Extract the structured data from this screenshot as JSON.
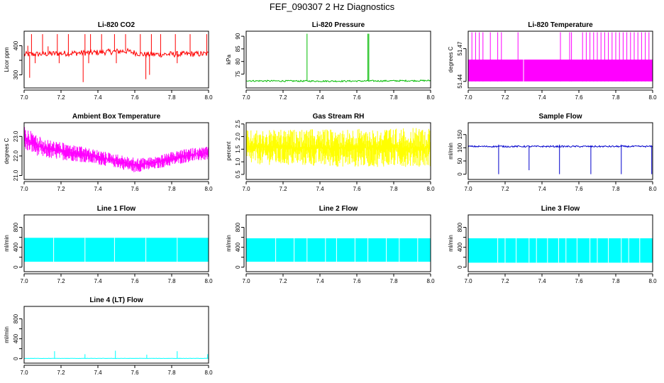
{
  "figure": {
    "title": "FEF_090307  2 Hz Diagnostics"
  },
  "chart_data": [
    {
      "type": "line",
      "title": "Li-820 CO2",
      "ylabel": "Licor ppm",
      "color": "#ff0000",
      "xlim": [
        7.0,
        8.0
      ],
      "ylim": [
        255,
        450
      ],
      "xticks": [
        7.0,
        7.2,
        7.4,
        7.6,
        7.8,
        8.0
      ],
      "yticks": [
        300,
        350,
        400
      ],
      "yticklabels": [
        "300",
        "",
        "400"
      ],
      "series": [
        {
          "name": "CO2",
          "kind": "noise",
          "segments": [
            [
              7.0,
              370
            ],
            [
              7.4,
              377
            ],
            [
              7.55,
              382
            ],
            [
              7.65,
              370
            ],
            [
              8.0,
              372
            ]
          ],
          "noise": [
            [
              7.0,
              10
            ]
          ],
          "spikes": [
            [
              7.02,
              400
            ],
            [
              7.04,
              440
            ],
            [
              7.1,
              440
            ],
            [
              7.13,
              398
            ],
            [
              7.18,
              440
            ],
            [
              7.24,
              440
            ],
            [
              7.33,
              440
            ],
            [
              7.36,
              440
            ],
            [
              7.42,
              440
            ],
            [
              7.49,
              440
            ],
            [
              7.55,
              440
            ],
            [
              7.63,
              440
            ],
            [
              7.69,
              440
            ],
            [
              7.74,
              440
            ],
            [
              7.82,
              440
            ],
            [
              7.9,
              440
            ],
            [
              7.99,
              440
            ],
            [
              7.03,
              290
            ],
            [
              7.06,
              340
            ],
            [
              7.19,
              340
            ],
            [
              7.32,
              275
            ],
            [
              7.35,
              340
            ],
            [
              7.5,
              340
            ],
            [
              7.66,
              285
            ],
            [
              7.68,
              300
            ],
            [
              7.83,
              340
            ],
            [
              8.0,
              330
            ]
          ]
        }
      ]
    },
    {
      "type": "line",
      "title": "Li-820 Pressure",
      "ylabel": "kPa",
      "color": "#00bb00",
      "xlim": [
        7.0,
        8.0
      ],
      "ylim": [
        69.5,
        92
      ],
      "xticks": [
        7.0,
        7.2,
        7.4,
        7.6,
        7.8,
        8.0
      ],
      "yticks": [
        75,
        80,
        85,
        90
      ],
      "yticklabels": [
        "75",
        "80",
        "85",
        "90"
      ],
      "series": [
        {
          "name": "Pressure",
          "kind": "noise",
          "segments": [
            [
              7.0,
              72.5
            ],
            [
              7.03,
              72.3
            ],
            [
              7.5,
              72.2
            ],
            [
              8.0,
              72.4
            ]
          ],
          "noise": [
            [
              7.0,
              0.3
            ]
          ],
          "spikes": [
            [
              7.0,
              88
            ],
            [
              7.33,
              91
            ],
            [
              7.66,
              91
            ],
            [
              7.665,
              91
            ],
            [
              8.0,
              91
            ]
          ]
        }
      ]
    },
    {
      "type": "line",
      "title": "Li-820 Temperature",
      "ylabel": "degrees C",
      "color": "#ff00ff",
      "xlim": [
        7.0,
        8.0
      ],
      "ylim": [
        51.434,
        51.486
      ],
      "xticks": [
        7.0,
        7.2,
        7.4,
        7.6,
        7.8,
        8.0
      ],
      "yticks": [
        51.44,
        51.47
      ],
      "yticklabels": [
        "51.44",
        "51.47"
      ],
      "series": [
        {
          "name": "Temperature",
          "kind": "band",
          "segments": [
            [
              7.0,
              51.44
            ],
            [
              8.0,
              51.44
            ]
          ],
          "hi": 51.46,
          "gap": 7.3,
          "spikes": [
            [
              7.02,
              51.485
            ],
            [
              7.04,
              51.485
            ],
            [
              7.06,
              51.485
            ],
            [
              7.08,
              51.485
            ],
            [
              7.12,
              51.485
            ],
            [
              7.16,
              51.485
            ],
            [
              7.18,
              51.485
            ],
            [
              7.27,
              51.485
            ],
            [
              7.5,
              51.485
            ],
            [
              7.55,
              51.485
            ],
            [
              7.56,
              51.485
            ],
            [
              7.62,
              51.485
            ],
            [
              7.64,
              51.485
            ],
            [
              7.66,
              51.485
            ],
            [
              7.68,
              51.485
            ],
            [
              7.7,
              51.485
            ],
            [
              7.72,
              51.485
            ],
            [
              7.74,
              51.485
            ],
            [
              7.76,
              51.485
            ],
            [
              7.78,
              51.485
            ],
            [
              7.8,
              51.485
            ],
            [
              7.82,
              51.485
            ],
            [
              7.84,
              51.485
            ],
            [
              7.86,
              51.485
            ],
            [
              7.88,
              51.485
            ],
            [
              7.9,
              51.485
            ],
            [
              7.92,
              51.485
            ],
            [
              7.94,
              51.485
            ],
            [
              7.96,
              51.485
            ],
            [
              7.98,
              51.485
            ]
          ]
        }
      ]
    },
    {
      "type": "line",
      "title": "Ambient Box Temperature",
      "ylabel": "degrees C",
      "color": "#ff00ff",
      "xlim": [
        7.0,
        8.0
      ],
      "ylim": [
        20.8,
        23.7
      ],
      "xticks": [
        7.0,
        7.2,
        7.4,
        7.6,
        7.8,
        8.0
      ],
      "yticks": [
        21.0,
        22.0,
        23.0
      ],
      "yticklabels": [
        "21.0",
        "22.0",
        "23.0"
      ],
      "series": [
        {
          "name": "Ambient",
          "kind": "envelope",
          "lo": [
            [
              7.0,
              22.3
            ],
            [
              7.1,
              21.9
            ],
            [
              7.3,
              21.7
            ],
            [
              7.5,
              21.4
            ],
            [
              7.6,
              21.15
            ],
            [
              7.7,
              21.3
            ],
            [
              7.8,
              21.5
            ],
            [
              7.9,
              21.7
            ],
            [
              8.0,
              21.8
            ]
          ],
          "hi": [
            [
              7.0,
              23.5
            ],
            [
              7.1,
              22.9
            ],
            [
              7.3,
              22.5
            ],
            [
              7.5,
              22.1
            ],
            [
              7.6,
              21.9
            ],
            [
              7.7,
              21.95
            ],
            [
              7.8,
              22.2
            ],
            [
              7.9,
              22.4
            ],
            [
              8.0,
              22.5
            ]
          ]
        }
      ]
    },
    {
      "type": "line",
      "title": "Gas Stream RH",
      "ylabel": "percent",
      "color": "#ffff00",
      "xlim": [
        7.0,
        8.0
      ],
      "ylim": [
        0.3,
        2.55
      ],
      "xticks": [
        7.0,
        7.2,
        7.4,
        7.6,
        7.8,
        8.0
      ],
      "yticks": [
        0.5,
        1.0,
        1.5,
        2.0,
        2.5
      ],
      "yticklabels": [
        "0.5",
        "1.0",
        "1.5",
        "2.0",
        "2.5"
      ],
      "series": [
        {
          "name": "RH",
          "kind": "envelope",
          "lo": [
            [
              7.0,
              0.9
            ],
            [
              7.5,
              0.8
            ],
            [
              8.0,
              0.8
            ]
          ],
          "hi": [
            [
              7.0,
              2.25
            ],
            [
              7.5,
              2.3
            ],
            [
              8.0,
              2.35
            ]
          ]
        }
      ]
    },
    {
      "type": "line",
      "title": "Sample Flow",
      "ylabel": "ml/min",
      "color": "#0000cc",
      "xlim": [
        7.0,
        8.0
      ],
      "ylim": [
        -20,
        195
      ],
      "xticks": [
        7.0,
        7.2,
        7.4,
        7.6,
        7.8,
        8.0
      ],
      "yticks": [
        0,
        50,
        100,
        150
      ],
      "yticklabels": [
        "0",
        "50",
        "100",
        "150"
      ],
      "series": [
        {
          "name": "Sample",
          "kind": "noise",
          "segments": [
            [
              7.0,
              105
            ],
            [
              8.0,
              105
            ]
          ],
          "noise": [
            [
              7.0,
              3
            ]
          ],
          "spikes": [
            [
              7.165,
              0
            ],
            [
              7.33,
              15
            ],
            [
              7.495,
              0
            ],
            [
              7.665,
              0
            ],
            [
              7.83,
              0
            ],
            [
              7.995,
              0
            ],
            [
              7.165,
              112
            ],
            [
              7.495,
              112
            ],
            [
              7.83,
              112
            ]
          ]
        }
      ]
    },
    {
      "type": "line",
      "title": "Line 1 Flow",
      "ylabel": "ml/min",
      "color": "#00ffff",
      "xlim": [
        7.0,
        8.0
      ],
      "ylim": [
        -90,
        1050
      ],
      "xticks": [
        7.0,
        7.2,
        7.4,
        7.6,
        7.8,
        8.0
      ],
      "yticks": [
        0,
        200,
        400,
        600,
        800
      ],
      "yticklabels": [
        "0",
        "",
        "400",
        "",
        "800"
      ],
      "series": [
        {
          "name": "Line 1",
          "kind": "band",
          "segments": [
            [
              7.0,
              110
            ],
            [
              8.0,
              110
            ]
          ],
          "hi": 590,
          "gaps": [
            7.16,
            7.33,
            7.49,
            7.66,
            7.83
          ]
        }
      ]
    },
    {
      "type": "line",
      "title": "Line 2 Flow",
      "ylabel": "ml/min",
      "color": "#00ffff",
      "xlim": [
        7.0,
        8.0
      ],
      "ylim": [
        -90,
        1050
      ],
      "xticks": [
        7.0,
        7.2,
        7.4,
        7.6,
        7.8,
        8.0
      ],
      "yticks": [
        0,
        200,
        400,
        600,
        800
      ],
      "yticklabels": [
        "0",
        "",
        "400",
        "",
        "800"
      ],
      "series": [
        {
          "name": "Line 2",
          "kind": "band",
          "segments": [
            [
              7.0,
              110
            ],
            [
              8.0,
              110
            ]
          ],
          "hi": 580,
          "gaps": [
            7.16,
            7.26,
            7.33,
            7.43,
            7.49,
            7.59,
            7.66,
            7.76,
            7.83,
            7.93
          ]
        }
      ]
    },
    {
      "type": "line",
      "title": "Line 3 Flow",
      "ylabel": "ml/min",
      "color": "#00ffff",
      "xlim": [
        7.0,
        8.0
      ],
      "ylim": [
        -90,
        1050
      ],
      "xticks": [
        7.0,
        7.2,
        7.4,
        7.6,
        7.8,
        8.0
      ],
      "yticks": [
        0,
        200,
        400,
        600,
        800
      ],
      "yticklabels": [
        "0",
        "",
        "400",
        "",
        "800"
      ],
      "series": [
        {
          "name": "Line 3",
          "kind": "band",
          "segments": [
            [
              7.0,
              90
            ],
            [
              8.0,
              90
            ]
          ],
          "hi": 580,
          "gaps": [
            7.16,
            7.2,
            7.26,
            7.33,
            7.37,
            7.43,
            7.49,
            7.53,
            7.59,
            7.66,
            7.7,
            7.76,
            7.83,
            7.87,
            7.93
          ]
        }
      ]
    },
    {
      "type": "line",
      "title": "Line 4 (LT) Flow",
      "ylabel": "ml/min",
      "color": "#00ffff",
      "xlim": [
        7.0,
        8.0
      ],
      "ylim": [
        -90,
        1050
      ],
      "xticks": [
        7.0,
        7.2,
        7.4,
        7.6,
        7.8,
        8.0
      ],
      "yticks": [
        0,
        200,
        400,
        600,
        800
      ],
      "yticklabels": [
        "0",
        "",
        "400",
        "",
        "800"
      ],
      "series": [
        {
          "name": "Line 4",
          "kind": "noise",
          "segments": [
            [
              7.0,
              5
            ],
            [
              8.0,
              5
            ]
          ],
          "noise": [
            [
              7.0,
              3
            ]
          ],
          "spikes": [
            [
              7.165,
              150
            ],
            [
              7.33,
              90
            ],
            [
              7.495,
              160
            ],
            [
              7.665,
              80
            ],
            [
              7.83,
              150
            ],
            [
              7.995,
              90
            ]
          ]
        }
      ]
    }
  ]
}
